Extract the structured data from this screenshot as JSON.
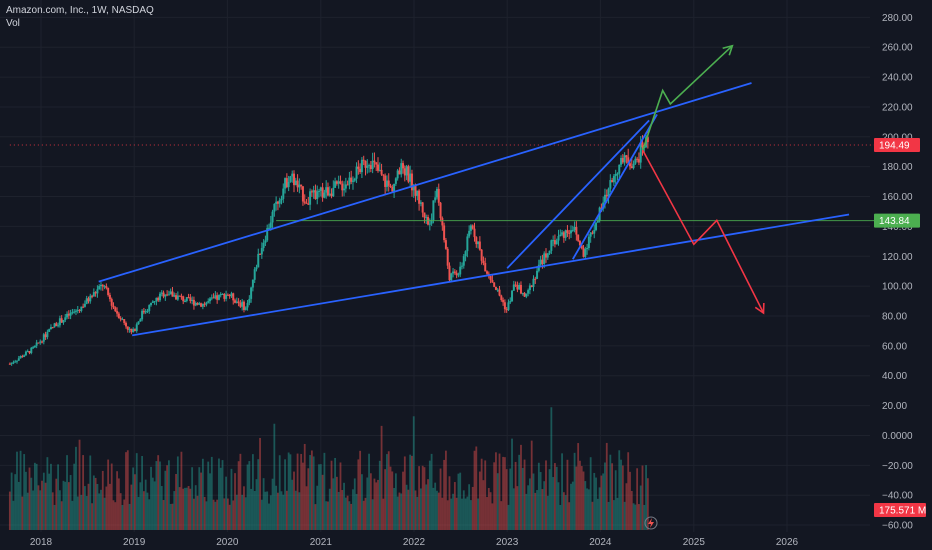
{
  "header": {
    "symbol_title": "Amazon.com, Inc., 1W, NASDAQ",
    "volume_label": "Vol"
  },
  "colors": {
    "background": "#131722",
    "up": "#26a69a",
    "down": "#ef5350",
    "trendline": "#2962ff",
    "bull_arrow": "#4caf50",
    "bear_arrow": "#f23645",
    "support_line": "#4caf50",
    "price_line": "#f23645"
  },
  "chart_data": {
    "type": "candlestick",
    "price_axis": {
      "ticks": [
        "280.00",
        "260.00",
        "240.00",
        "220.00",
        "200.00",
        "180.00",
        "160.00",
        "140.00",
        "120.00",
        "100.00",
        "80.00",
        "60.00",
        "40.00",
        "20.00",
        "0.0000",
        "−20.00",
        "−40.00",
        "−60.00"
      ],
      "range": [
        -60,
        280
      ]
    },
    "time_axis": {
      "ticks": [
        "2018",
        "2019",
        "2020",
        "2021",
        "2022",
        "2023",
        "2024",
        "2025",
        "2026"
      ]
    },
    "price_anchors": [
      [
        "2017-09-01",
        48
      ],
      [
        "2017-12-01",
        58
      ],
      [
        "2018-03-01",
        75
      ],
      [
        "2018-06-01",
        85
      ],
      [
        "2018-09-01",
        101
      ],
      [
        "2018-10-15",
        85
      ],
      [
        "2018-12-24",
        68
      ],
      [
        "2019-02-01",
        82
      ],
      [
        "2019-05-01",
        96
      ],
      [
        "2019-08-01",
        90
      ],
      [
        "2019-10-01",
        88
      ],
      [
        "2020-01-01",
        95
      ],
      [
        "2020-03-16",
        85
      ],
      [
        "2020-05-01",
        120
      ],
      [
        "2020-07-10",
        155
      ],
      [
        "2020-09-01",
        175
      ],
      [
        "2020-11-01",
        158
      ],
      [
        "2021-01-01",
        162
      ],
      [
        "2021-04-01",
        168
      ],
      [
        "2021-07-10",
        185
      ],
      [
        "2021-10-01",
        165
      ],
      [
        "2021-11-20",
        180
      ],
      [
        "2022-01-01",
        166
      ],
      [
        "2022-03-01",
        140
      ],
      [
        "2022-04-01",
        165
      ],
      [
        "2022-05-20",
        106
      ],
      [
        "2022-07-01",
        110
      ],
      [
        "2022-08-15",
        142
      ],
      [
        "2022-10-01",
        115
      ],
      [
        "2022-12-30",
        84
      ],
      [
        "2023-02-01",
        102
      ],
      [
        "2023-03-15",
        92
      ],
      [
        "2023-05-01",
        112
      ],
      [
        "2023-07-01",
        130
      ],
      [
        "2023-09-15",
        140
      ],
      [
        "2023-10-25",
        122
      ],
      [
        "2024-01-01",
        150
      ],
      [
        "2024-03-01",
        178
      ],
      [
        "2024-04-15",
        185
      ],
      [
        "2024-05-20",
        182
      ],
      [
        "2024-06-15",
        195
      ],
      [
        "2024-07-10",
        198
      ]
    ],
    "price_labels": [
      {
        "value": 194.49,
        "text": "194.49",
        "color": "#f23645"
      },
      {
        "value": 143.84,
        "text": "143.84",
        "color": "#4caf50"
      }
    ],
    "volume_label": {
      "text": "175.571 M",
      "color": "#f23645"
    },
    "trendlines": [
      {
        "name": "channel-upper",
        "from": [
          "2018-08-15",
          103
        ],
        "to": [
          "2025-08-15",
          236
        ]
      },
      {
        "name": "channel-lower",
        "from": [
          "2018-12-24",
          67
        ],
        "to": [
          "2026-09-01",
          148
        ]
      },
      {
        "name": "rising-wedge-upper",
        "from": [
          "2023-01-01",
          112
        ],
        "to": [
          "2024-07-10",
          211
        ]
      },
      {
        "name": "rising-wedge-lower",
        "from": [
          "2023-09-15",
          118
        ],
        "to": [
          "2024-08-10",
          215
        ]
      }
    ],
    "horizontal_levels": [
      {
        "name": "support-level",
        "value": 143.84,
        "from": "2020-07-10",
        "style": "solid",
        "color": "#4caf50"
      },
      {
        "name": "current-price-line",
        "value": 194.49,
        "from": "2017-09-01",
        "style": "dotted",
        "color": "#f23645"
      }
    ],
    "projections": [
      {
        "name": "bullish-projection",
        "color": "#4caf50",
        "points": [
          [
            "2024-06-15",
            191
          ],
          [
            "2024-09-01",
            231
          ],
          [
            "2024-10-01",
            222
          ],
          [
            "2025-06-01",
            261
          ]
        ]
      },
      {
        "name": "bearish-projection",
        "color": "#f23645",
        "points": [
          [
            "2024-06-15",
            191
          ],
          [
            "2025-01-01",
            128
          ],
          [
            "2025-04-01",
            144
          ],
          [
            "2025-10-01",
            82
          ]
        ]
      }
    ]
  }
}
